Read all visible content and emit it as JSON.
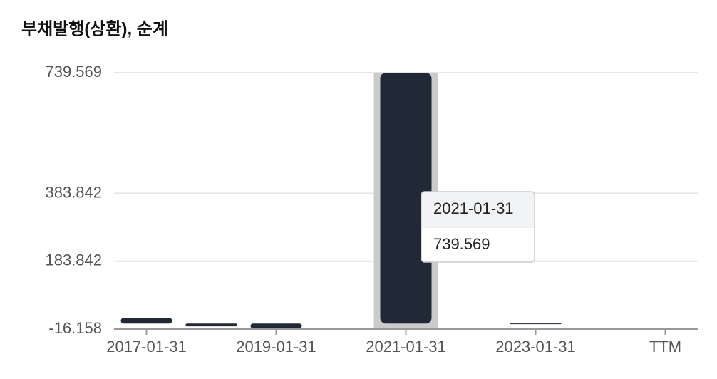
{
  "chart_data": {
    "type": "bar",
    "title": "부채발행(상환), 순계",
    "categories": [
      "2017-01-31",
      null,
      "2019-01-31",
      null,
      "2021-01-31",
      null,
      "2023-01-31",
      null,
      "TTM"
    ],
    "values": [
      16.8,
      -8,
      -14,
      null,
      739.569,
      null,
      0.5,
      null,
      null
    ],
    "color": "#212936",
    "ylim": [
      -16.158,
      739.569
    ],
    "yticks": [
      -16.158,
      183.842,
      383.842,
      739.569
    ],
    "grid": true,
    "tooltip": {
      "category": 4
    }
  }
}
